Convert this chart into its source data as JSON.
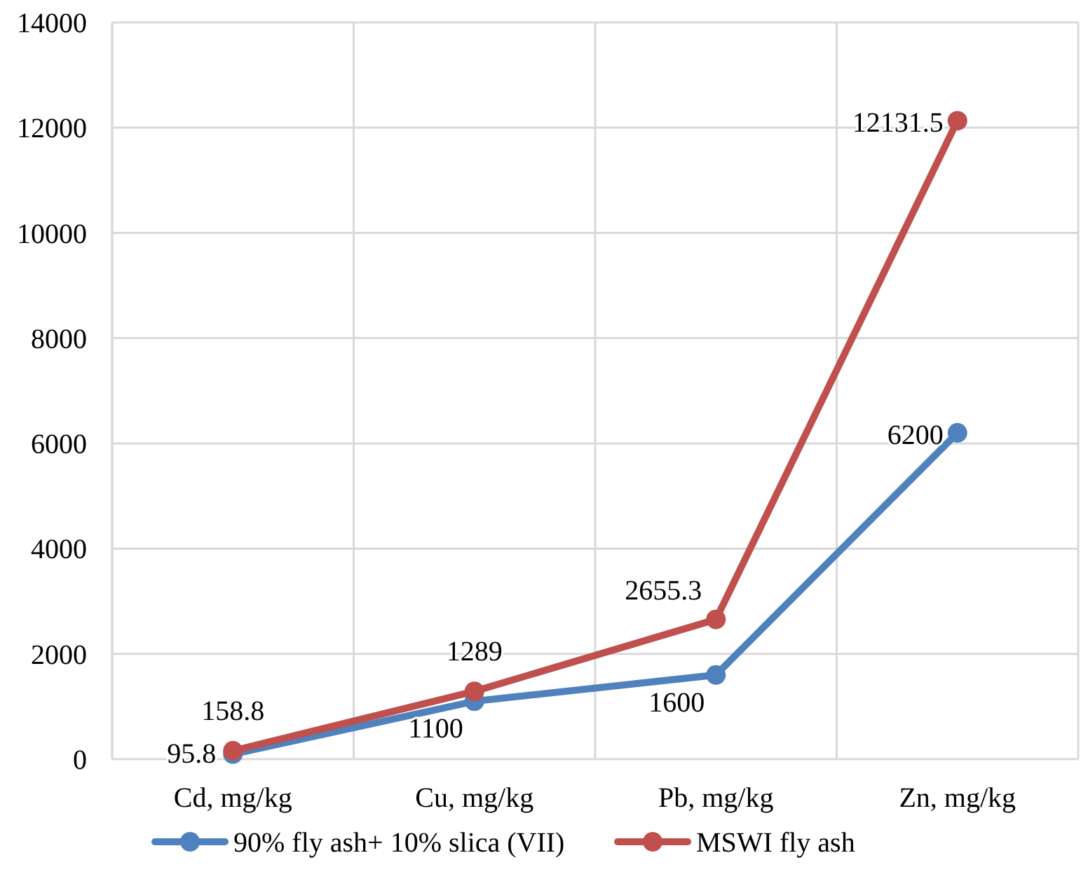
{
  "chart_data": {
    "type": "line",
    "categories": [
      "Cd, mg/kg",
      "Cu, mg/kg",
      "Pb, mg/kg",
      "Zn, mg/kg"
    ],
    "series": [
      {
        "name": "90% fly ash+ 10% slica (VII)",
        "color": "#4f81bd",
        "values": [
          95.8,
          1100,
          1600,
          6200
        ]
      },
      {
        "name": "MSWI fly ash",
        "color": "#c0504d",
        "values": [
          158.8,
          1289,
          2655.3,
          12131.5
        ]
      }
    ],
    "ylim": [
      0,
      14000
    ],
    "yticks": [
      0,
      2000,
      4000,
      6000,
      8000,
      10000,
      12000,
      14000
    ],
    "grid": true,
    "legend": "bottom",
    "marker": "circle",
    "line_style": "solid",
    "data_labels": true
  }
}
